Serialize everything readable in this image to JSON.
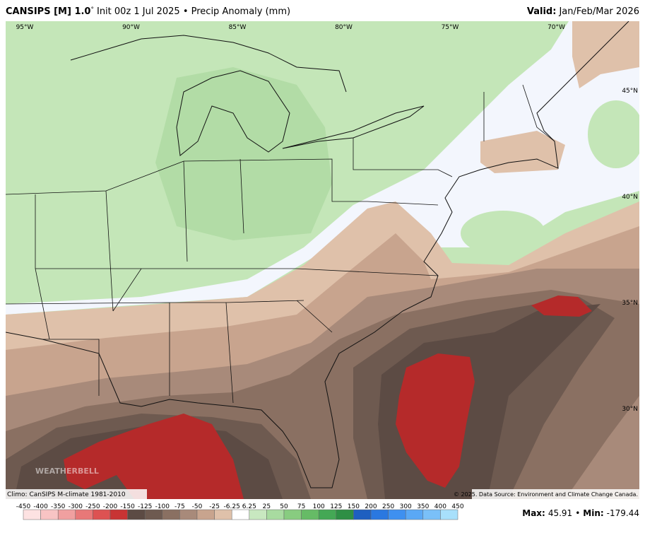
{
  "header": {
    "model": "CANSIPS [M] 1.0",
    "degree": "°",
    "description": "Init 00z 1 Jul 2025 • Precip Anomaly (mm)",
    "valid_label": "Valid:",
    "valid_value": "Jan/Feb/Mar 2026"
  },
  "map": {
    "longitudes": [
      "95°W",
      "90°W",
      "85°W",
      "80°W",
      "75°W",
      "70°W"
    ],
    "latitudes": [
      "45°N",
      "40°N",
      "35°N",
      "30°N"
    ],
    "logo": "WEATHERBELL"
  },
  "footer": {
    "climo": "Climo: CanSIPS M-climate 1981-2010",
    "credit": "© 2025. Data Source: Environment and Climate Change Canada.",
    "max_label": "Max:",
    "max_value": "45.91",
    "min_label": "Min:",
    "min_value": "-179.44"
  },
  "legend": {
    "levels": [
      -450,
      -400,
      -350,
      -300,
      -250,
      -200,
      -150,
      -125,
      -100,
      -75,
      -50,
      -25,
      -6.25,
      6.25,
      25,
      50,
      75,
      100,
      125,
      150,
      200,
      250,
      300,
      350,
      400,
      450
    ],
    "colors": [
      "#fde2e2",
      "#f8c4c4",
      "#f0a0a0",
      "#e87878",
      "#dd5252",
      "#c83434",
      "#5c4b44",
      "#6e5a50",
      "#8a7062",
      "#a88a7a",
      "#c8a48e",
      "#dfc1aa",
      "#ffffff",
      "#c8e8c0",
      "#a8dba0",
      "#88cc80",
      "#66bb66",
      "#44a855",
      "#2e8f45",
      "#1e5fc0",
      "#2a78e0",
      "#3e90f0",
      "#5aa8f5",
      "#7ac0f8",
      "#a8e0fb"
    ]
  }
}
